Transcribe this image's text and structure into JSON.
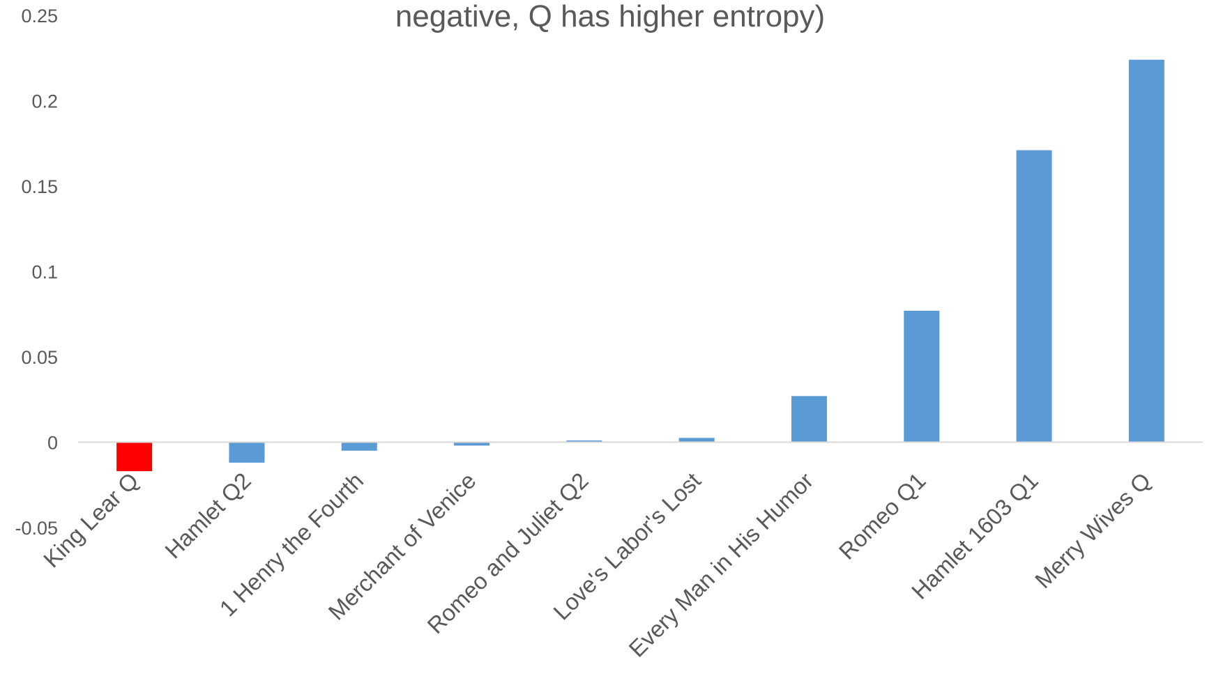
{
  "chart_data": {
    "type": "bar",
    "title": "negative, Q has higher entropy)",
    "xlabel": "",
    "ylabel": "",
    "ylim": [
      -0.05,
      0.25
    ],
    "yticks": [
      "-0.05",
      "0",
      "0.05",
      "0.1",
      "0.15",
      "0.2",
      "0.25"
    ],
    "categories": [
      "King Lear Q",
      "Hamlet Q2",
      "1 Henry the Fourth",
      "Merchant of Venice",
      "Romeo and Juliet Q2",
      "Love's Labor's Lost",
      "Every Man in His Humor",
      "Romeo Q1",
      "Hamlet 1603 Q1",
      "Merry Wives Q"
    ],
    "values": [
      -0.017,
      -0.012,
      -0.005,
      -0.002,
      0.001,
      0.0025,
      0.027,
      0.077,
      0.171,
      0.224
    ],
    "bar_colors": [
      "#ff0000",
      "#5b9bd5",
      "#5b9bd5",
      "#5b9bd5",
      "#5b9bd5",
      "#5b9bd5",
      "#5b9bd5",
      "#5b9bd5",
      "#5b9bd5",
      "#5b9bd5"
    ],
    "grid": false,
    "legend": "none"
  },
  "colors": {
    "bar": "#5b9bd5",
    "highlight": "#ff0000",
    "axis": "#d9d9d9",
    "text": "#595959"
  }
}
